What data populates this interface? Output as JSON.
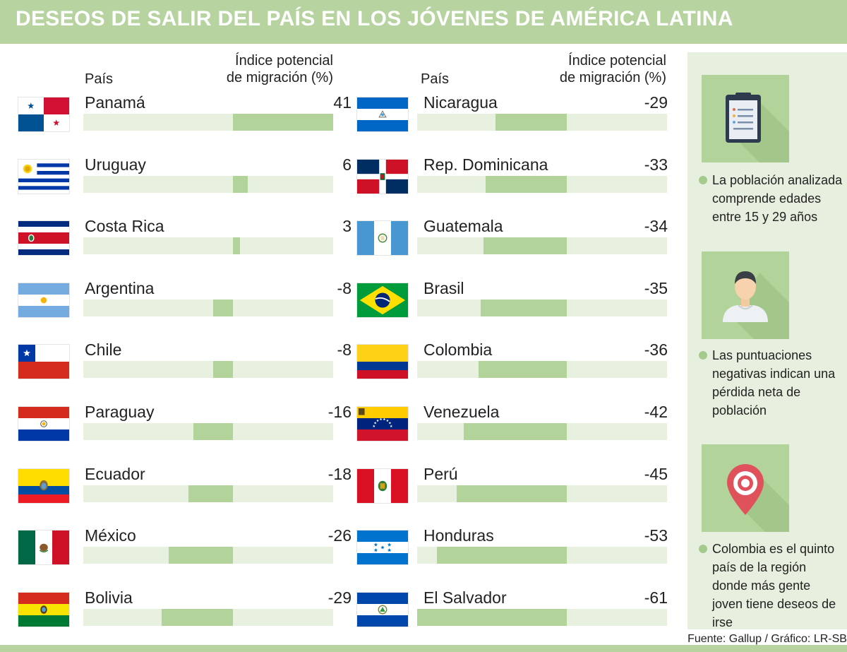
{
  "title": "DESEOS DE SALIR DEL PAÍS EN LOS JÓVENES DE AMÉRICA LATINA",
  "columns": {
    "country_header": "País",
    "index_header_line1": "Índice potencial",
    "index_header_line2": "de migración (%)"
  },
  "colors": {
    "header": "#b6d3a0",
    "bar_fill": "#b2d49b",
    "bar_track": "#e8f1df",
    "side_panel": "#e7f0df",
    "icon_card": "#b2d49b"
  },
  "chart_data": {
    "type": "bar",
    "orientation": "horizontal",
    "title": "DESEOS DE SALIR DEL PAÍS EN LOS JÓVENES DE AMÉRICA LATINA",
    "xlabel": "Índice potencial de migración (%)",
    "ylabel": "País",
    "xlim": [
      -61,
      41
    ],
    "categories": [
      "Panamá",
      "Uruguay",
      "Costa Rica",
      "Argentina",
      "Chile",
      "Paraguay",
      "Ecuador",
      "México",
      "Bolivia",
      "Nicaragua",
      "Rep. Dominicana",
      "Guatemala",
      "Brasil",
      "Colombia",
      "Venezuela",
      "Perú",
      "Honduras",
      "El Salvador"
    ],
    "values": [
      41,
      6,
      3,
      -8,
      -8,
      -16,
      -18,
      -26,
      -29,
      -29,
      -33,
      -34,
      -35,
      -36,
      -42,
      -45,
      -53,
      -61
    ],
    "flags": [
      "panama-flag",
      "uruguay-flag",
      "costa-rica-flag",
      "argentina-flag",
      "chile-flag",
      "paraguay-flag",
      "ecuador-flag",
      "mexico-flag",
      "bolivia-flag",
      "nicaragua-flag",
      "dominican-republic-flag",
      "guatemala-flag",
      "brazil-flag",
      "colombia-flag",
      "venezuela-flag",
      "peru-flag",
      "honduras-flag",
      "el-salvador-flag"
    ]
  },
  "side_notes": [
    {
      "icon": "clipboard-icon",
      "text": "La población analizada comprende edades entre 15 y 29 años"
    },
    {
      "icon": "person-icon",
      "text": "Las puntuaciones negativas indican una pérdida neta de población"
    },
    {
      "icon": "location-pin-icon",
      "text": "Colombia es el quinto país de la región donde más gente joven tiene deseos de irse"
    }
  ],
  "source": "Fuente: Gallup / Gráfico: LR-SB"
}
